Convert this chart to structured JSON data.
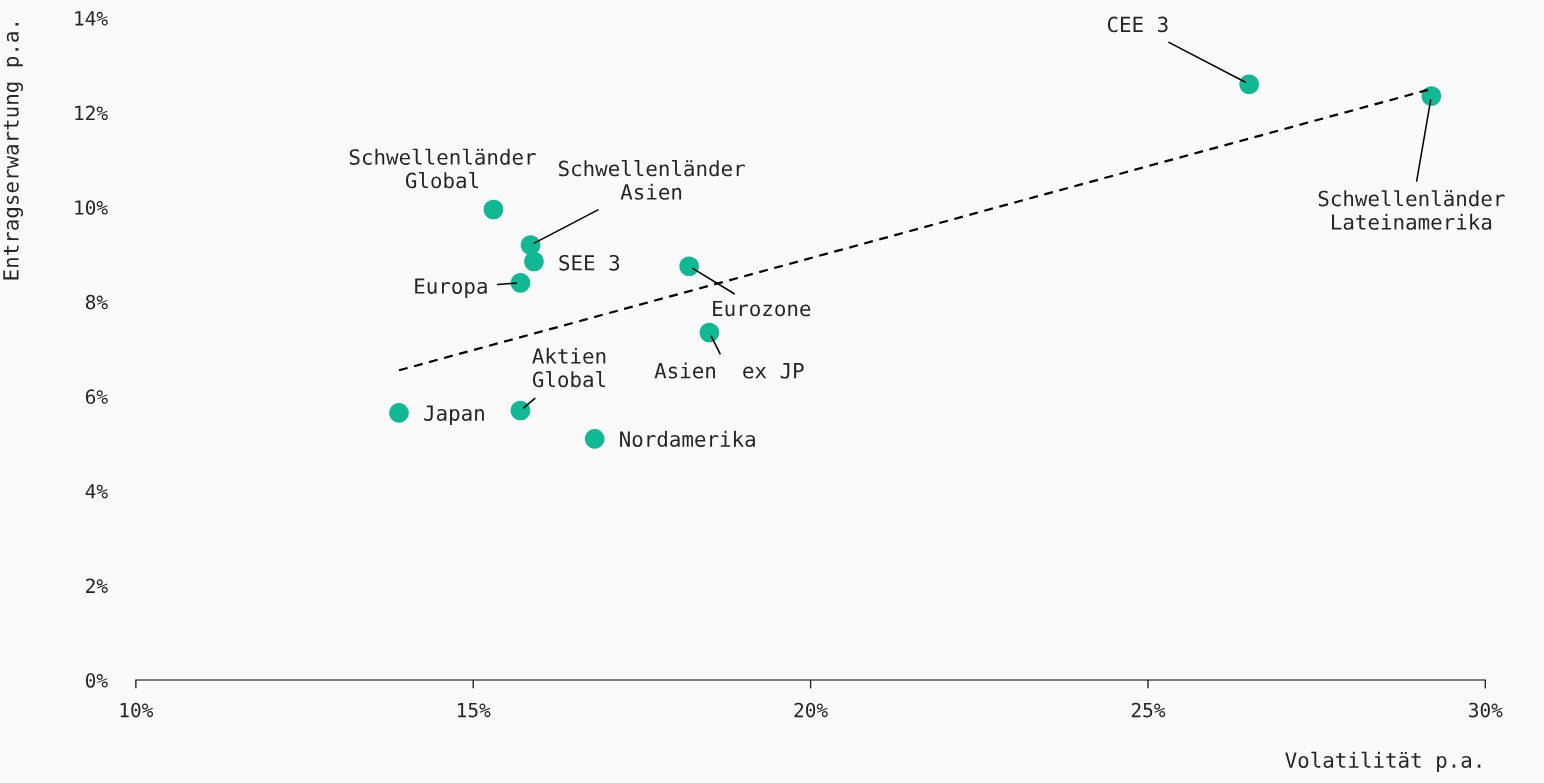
{
  "chart_data": {
    "type": "scatter",
    "xlabel": "Volatilität p.a.",
    "ylabel": "Entragserwartung p.a.",
    "xlim": [
      10,
      30
    ],
    "ylim": [
      0,
      14
    ],
    "xticks": [
      {
        "value": 10,
        "label": "10%"
      },
      {
        "value": 15,
        "label": "15%"
      },
      {
        "value": 20,
        "label": "20%"
      },
      {
        "value": 25,
        "label": "25%"
      },
      {
        "value": 30,
        "label": "30%"
      }
    ],
    "yticks": [
      {
        "value": 0,
        "label": "0%"
      },
      {
        "value": 2,
        "label": "2%"
      },
      {
        "value": 4,
        "label": "4%"
      },
      {
        "value": 6,
        "label": "6%"
      },
      {
        "value": 8,
        "label": "8%"
      },
      {
        "value": 10,
        "label": "10%"
      },
      {
        "value": 12,
        "label": "12%"
      },
      {
        "value": 14,
        "label": "14%"
      }
    ],
    "grid": false,
    "legend": false,
    "marker": "circle",
    "series": [
      {
        "color": "#10b894",
        "x": [
          26.5,
          29.2,
          15.3,
          15.85,
          15.9,
          15.7,
          18.2,
          18.5,
          13.9,
          15.7,
          16.8
        ],
        "values": [
          12.6,
          12.35,
          9.95,
          9.2,
          8.85,
          8.4,
          8.75,
          7.35,
          5.65,
          5.7,
          5.1
        ]
      },
      {
        "type": "line",
        "color": "#000000",
        "line_style": "dashed",
        "marker": "none",
        "x": [
          13.9,
          29.2
        ],
        "values": [
          6.55,
          12.5
        ]
      }
    ],
    "annotations": [
      {
        "text": "CEE 3",
        "x": 26.5,
        "y": 12.6
      },
      {
        "text": "Schwellenländer\nLateinamerika",
        "x": 29.2,
        "y": 12.35
      },
      {
        "text": "Schwellenländer\nGlobal",
        "x": 15.3,
        "y": 9.95
      },
      {
        "text": "Schwellenländer\nAsien",
        "x": 15.85,
        "y": 9.2
      },
      {
        "text": "SEE 3",
        "x": 15.9,
        "y": 8.85
      },
      {
        "text": "Europa",
        "x": 15.7,
        "y": 8.4
      },
      {
        "text": "Eurozone",
        "x": 18.2,
        "y": 8.75
      },
      {
        "text": "Asien  ex JP",
        "x": 18.5,
        "y": 7.35
      },
      {
        "text": "Japan",
        "x": 13.9,
        "y": 5.65
      },
      {
        "text": "Aktien\nGlobal",
        "x": 15.7,
        "y": 5.7
      },
      {
        "text": "Nordamerika",
        "x": 16.8,
        "y": 5.1
      }
    ]
  }
}
